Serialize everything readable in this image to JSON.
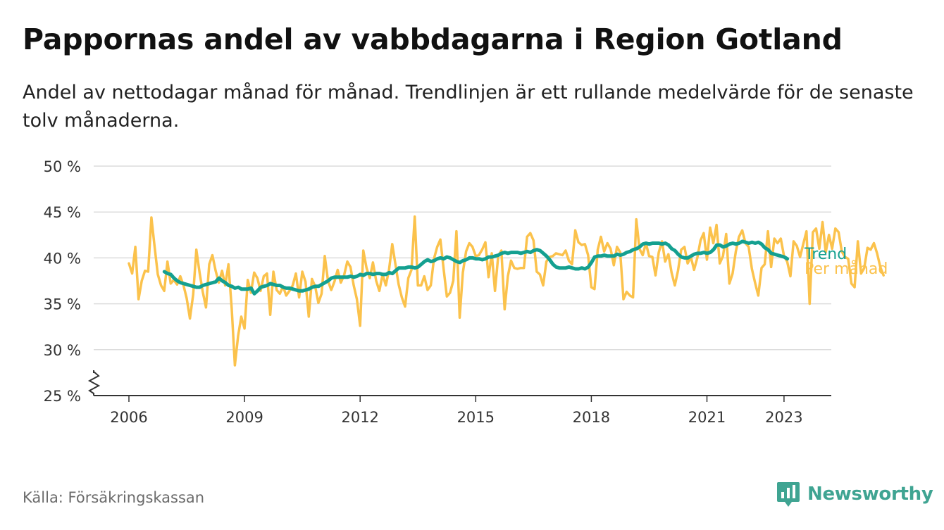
{
  "header": {
    "title": "Pappornas andel av vabbdagarna i Region Gotland",
    "subtitle": "Andel av nettodagar månad för månad. Trendlinjen är ett rullande medelvärde för de senaste tolv månaderna."
  },
  "footer": {
    "source": "Källa: Försäkringskassan",
    "brand": "Newsworthy",
    "brand_icon": "bar-chart-logo-icon"
  },
  "colors": {
    "monthly": "#fbc24c",
    "trend": "#14a090",
    "grid": "#dcdcdc",
    "axis": "#333333",
    "brand": "#3fa492"
  },
  "chart_data": {
    "type": "line",
    "title": "Pappornas andel av vabbdagarna i Region Gotland",
    "xlabel": "",
    "ylabel": "",
    "ylim": [
      25,
      50
    ],
    "xlim": [
      2005.2,
      2024.3
    ],
    "y_ticks": [
      25,
      30,
      35,
      40,
      45,
      50
    ],
    "y_tick_labels": [
      "25 %",
      "30 %",
      "35 %",
      "40 %",
      "45 %",
      "50 %"
    ],
    "x_ticks": [
      2006,
      2009,
      2012,
      2015,
      2018,
      2021,
      2023
    ],
    "x_tick_labels": [
      "2006",
      "2009",
      "2012",
      "2015",
      "2018",
      "2021",
      "2023"
    ],
    "axis_break": true,
    "grid": true,
    "series": [
      {
        "name": "Per månad",
        "label": "Per månad",
        "color": "#fbc24c",
        "x_start": 2006.0,
        "step": 0.08333,
        "values": [
          39.4,
          38.3,
          41.2,
          35.5,
          37.5,
          38.6,
          38.5,
          44.4,
          41.2,
          38.2,
          37.0,
          36.4,
          39.6,
          37.2,
          37.6,
          37.1,
          38.0,
          37.0,
          35.6,
          33.4,
          36.0,
          40.9,
          38.4,
          36.3,
          34.6,
          39.3,
          40.3,
          38.6,
          37.3,
          38.6,
          37.0,
          39.3,
          34.5,
          28.3,
          31.5,
          33.6,
          32.3,
          37.6,
          36.2,
          38.4,
          37.8,
          36.4,
          38.0,
          38.3,
          33.8,
          38.5,
          36.5,
          36.1,
          36.9,
          35.9,
          36.4,
          37.0,
          38.3,
          35.7,
          38.5,
          37.4,
          33.6,
          37.7,
          36.9,
          35.1,
          36.1,
          40.2,
          37.5,
          36.5,
          37.4,
          38.7,
          37.3,
          38.1,
          39.6,
          39.0,
          37.0,
          35.5,
          32.6,
          40.8,
          38.9,
          37.8,
          39.5,
          37.5,
          36.4,
          38.2,
          37.0,
          38.7,
          41.5,
          39.3,
          37.1,
          35.7,
          34.7,
          37.8,
          38.7,
          44.5,
          37.0,
          37.0,
          38.0,
          36.5,
          37.0,
          39.9,
          41.2,
          42.0,
          38.8,
          35.8,
          36.2,
          37.5,
          42.9,
          33.5,
          38.4,
          40.7,
          41.6,
          41.2,
          40.2,
          40.3,
          40.9,
          41.7,
          37.9,
          40.5,
          36.4,
          40.2,
          40.8,
          34.4,
          38.0,
          39.7,
          38.9,
          38.8,
          38.9,
          38.9,
          42.3,
          42.7,
          41.9,
          38.5,
          38.2,
          37.0,
          39.6,
          40.1,
          40.2,
          40.5,
          40.4,
          40.3,
          40.8,
          39.7,
          39.3,
          43.0,
          41.7,
          41.4,
          41.5,
          40.3,
          36.8,
          36.6,
          40.9,
          42.3,
          40.7,
          41.6,
          41.0,
          39.2,
          41.2,
          40.6,
          35.5,
          36.3,
          35.9,
          35.7,
          44.2,
          41.0,
          40.3,
          41.6,
          40.2,
          40.1,
          38.1,
          40.6,
          41.8,
          39.6,
          40.4,
          38.4,
          37.0,
          38.6,
          40.9,
          41.2,
          39.4,
          40.1,
          38.7,
          40.0,
          41.9,
          42.7,
          39.8,
          43.3,
          41.6,
          43.6,
          39.4,
          40.2,
          42.6,
          37.2,
          38.3,
          40.7,
          42.3,
          43.0,
          41.6,
          41.2,
          38.8,
          37.3,
          35.9,
          38.9,
          39.3,
          42.9,
          39.0,
          42.1,
          41.6,
          42.1,
          40.2,
          39.6,
          38.0,
          41.8,
          41.3,
          40.1,
          41.5,
          42.9,
          35.0,
          42.8,
          43.2,
          41.0,
          43.9,
          40.6,
          42.5,
          41.0,
          43.2,
          42.8,
          40.7,
          40.1,
          39.9,
          37.2,
          36.8,
          41.8,
          38.3,
          38.9,
          41.1,
          40.9,
          41.6,
          40.5,
          39.0,
          38.1
        ]
      },
      {
        "name": "Trend",
        "label": "Trend",
        "color": "#14a090",
        "x_start": 2006.92,
        "step": 0.08333,
        "values": [
          38.5,
          38.3,
          38.2,
          37.8,
          37.5,
          37.3,
          37.2,
          37.1,
          37.0,
          36.9,
          36.8,
          36.8,
          37.0,
          37.1,
          37.2,
          37.3,
          37.4,
          37.8,
          37.5,
          37.3,
          37.0,
          36.9,
          36.7,
          36.8,
          36.6,
          36.6,
          36.6,
          36.7,
          36.1,
          36.4,
          36.8,
          36.9,
          37.0,
          37.2,
          37.1,
          37.0,
          37.0,
          36.8,
          36.7,
          36.7,
          36.6,
          36.5,
          36.4,
          36.4,
          36.5,
          36.6,
          36.8,
          36.9,
          36.9,
          37.1,
          37.3,
          37.5,
          37.8,
          37.9,
          37.9,
          37.9,
          37.9,
          37.9,
          38.0,
          37.9,
          38.0,
          38.2,
          38.1,
          38.3,
          38.3,
          38.2,
          38.3,
          38.3,
          38.2,
          38.2,
          38.4,
          38.3,
          38.6,
          38.9,
          38.9,
          38.9,
          39.0,
          39.0,
          38.9,
          39.0,
          39.3,
          39.6,
          39.8,
          39.6,
          39.7,
          39.9,
          40.0,
          39.9,
          40.1,
          40.0,
          39.8,
          39.6,
          39.5,
          39.7,
          39.8,
          40.0,
          40.0,
          39.9,
          39.9,
          39.8,
          39.9,
          40.1,
          40.1,
          40.2,
          40.3,
          40.5,
          40.6,
          40.5,
          40.6,
          40.6,
          40.6,
          40.5,
          40.6,
          40.7,
          40.6,
          40.8,
          40.9,
          40.8,
          40.5,
          40.2,
          39.8,
          39.3,
          39.0,
          38.9,
          38.9,
          38.9,
          39.0,
          38.9,
          38.8,
          38.8,
          38.9,
          38.8,
          39.0,
          39.5,
          40.1,
          40.2,
          40.2,
          40.3,
          40.2,
          40.2,
          40.2,
          40.4,
          40.3,
          40.4,
          40.6,
          40.7,
          40.9,
          41.0,
          41.2,
          41.5,
          41.6,
          41.5,
          41.6,
          41.6,
          41.6,
          41.5,
          41.6,
          41.4,
          41.0,
          40.8,
          40.4,
          40.1,
          40.0,
          40.0,
          40.2,
          40.4,
          40.5,
          40.5,
          40.6,
          40.5,
          40.6,
          40.9,
          41.4,
          41.4,
          41.2,
          41.3,
          41.5,
          41.6,
          41.5,
          41.6,
          41.8,
          41.7,
          41.6,
          41.7,
          41.6,
          41.7,
          41.5,
          41.1,
          40.9,
          40.5,
          40.4,
          40.3,
          40.2,
          40.1,
          39.9
        ]
      }
    ]
  }
}
